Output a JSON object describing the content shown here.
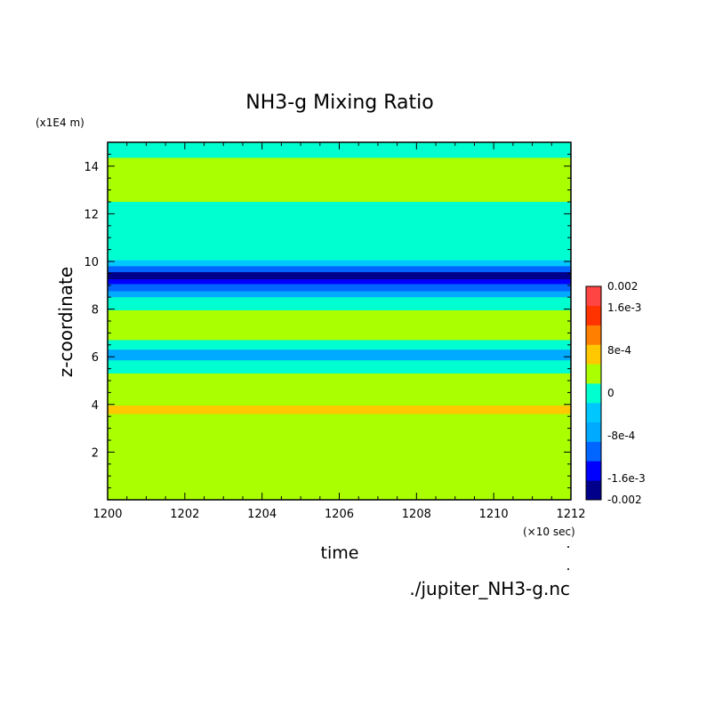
{
  "chart_data": {
    "type": "heatmap",
    "title": "NH3-g Mixing Ratio",
    "xlabel": "time",
    "ylabel": "z-coordinate",
    "x_unit": "(×10 sec)",
    "y_unit": "(x1E4 m)",
    "xlim": [
      1200,
      1212
    ],
    "ylim": [
      0,
      15
    ],
    "x_ticks": [
      1200,
      1202,
      1204,
      1206,
      1208,
      1210,
      1212
    ],
    "y_ticks": [
      2,
      4,
      6,
      8,
      10,
      12,
      14
    ],
    "levels": [
      -0.002,
      -0.0016,
      -0.0012,
      -0.0008,
      -0.0004,
      0,
      0.0004,
      0.0008,
      0.0012,
      0.0016,
      0.002
    ],
    "colors": [
      "#00008b",
      "#0000ff",
      "#0066ff",
      "#00aaff",
      "#00c8ff",
      "#00ffd0",
      "#aaff00",
      "#ffc800",
      "#ff7f00",
      "#ff3300",
      "#ff4444"
    ],
    "colorbar_labels": [
      "0.002",
      "1.6e-3",
      "8e-4",
      "0",
      "-8e-4",
      "-1.6e-3",
      "-0.002"
    ],
    "bands": [
      {
        "z": [
          14.35,
          15.0
        ],
        "level_index": 5
      },
      {
        "z": [
          12.5,
          14.35
        ],
        "level_index": 6
      },
      {
        "z": [
          10.05,
          12.5
        ],
        "level_index": 5
      },
      {
        "z": [
          9.8,
          10.05
        ],
        "level_index": 4
      },
      {
        "z": [
          9.55,
          9.8
        ],
        "level_index": 2
      },
      {
        "z": [
          9.25,
          9.55
        ],
        "level_index": 0
      },
      {
        "z": [
          9.05,
          9.25
        ],
        "level_index": 1
      },
      {
        "z": [
          8.75,
          9.05
        ],
        "level_index": 2
      },
      {
        "z": [
          8.5,
          8.75
        ],
        "level_index": 3
      },
      {
        "z": [
          7.95,
          8.5
        ],
        "level_index": 5
      },
      {
        "z": [
          6.7,
          7.95
        ],
        "level_index": 6
      },
      {
        "z": [
          6.3,
          6.7
        ],
        "level_index": 5
      },
      {
        "z": [
          5.85,
          6.3
        ],
        "level_index": 3
      },
      {
        "z": [
          5.3,
          5.85
        ],
        "level_index": 5
      },
      {
        "z": [
          3.95,
          5.3
        ],
        "level_index": 6
      },
      {
        "z": [
          3.6,
          3.95
        ],
        "level_index": 7
      },
      {
        "z": [
          0.0,
          3.6
        ],
        "level_index": 6
      }
    ]
  },
  "source_file": "./jupiter_NH3-g.nc"
}
